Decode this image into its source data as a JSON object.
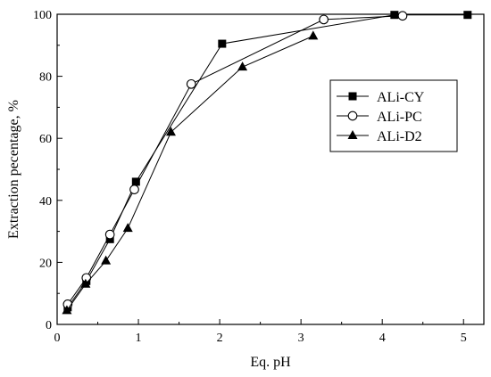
{
  "chart_data": {
    "type": "line",
    "title": "",
    "xlabel": "Eq. pH",
    "ylabel": "Extraction pecentage, %",
    "xlim": [
      0,
      5.25
    ],
    "ylim": [
      0,
      100
    ],
    "xticks": [
      0,
      1,
      2,
      3,
      4,
      5
    ],
    "yticks": [
      0,
      20,
      40,
      60,
      80,
      100
    ],
    "xtick_labels": [
      "0",
      "1",
      "2",
      "3",
      "4",
      "5"
    ],
    "ytick_labels": [
      "0",
      "20",
      "40",
      "60",
      "80",
      "100"
    ],
    "grid": false,
    "legend_position": "upper-right inside",
    "series": [
      {
        "name": "ALi-CY",
        "marker": "square-filled",
        "x": [
          0.13,
          0.36,
          0.65,
          0.97,
          2.03,
          4.15,
          5.05
        ],
        "y": [
          5.5,
          14.0,
          27.5,
          46.0,
          90.5,
          99.8,
          99.8
        ]
      },
      {
        "name": "ALi-PC",
        "marker": "circle-open",
        "x": [
          0.13,
          0.36,
          0.65,
          0.95,
          1.65,
          3.28,
          4.25
        ],
        "y": [
          6.5,
          15.0,
          29.0,
          43.5,
          77.5,
          98.3,
          99.5
        ]
      },
      {
        "name": "ALi-D2",
        "marker": "triangle-filled",
        "x": [
          0.12,
          0.35,
          0.6,
          0.87,
          1.4,
          2.28,
          3.15
        ],
        "y": [
          4.5,
          13.0,
          20.5,
          31.0,
          62.0,
          83.0,
          93.0
        ]
      }
    ]
  }
}
